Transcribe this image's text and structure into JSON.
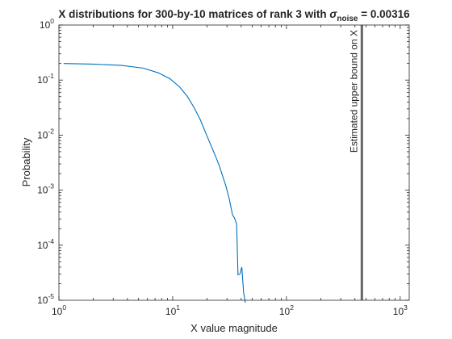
{
  "chart_data": {
    "type": "line",
    "title": {
      "main": "X  distributions  for  300-by-10   matrices  of  rank  3  with  ",
      "sigma": "σ",
      "subscript": "noise",
      "value": " = 0.00316"
    },
    "xlabel": "X value magnitude",
    "ylabel": "Probability",
    "x_scale": "log",
    "y_scale": "log",
    "xlim": [
      1,
      1200
    ],
    "ylim": [
      1e-05,
      1
    ],
    "grid": false,
    "x_ticks": [
      {
        "value": 1,
        "base": "10",
        "exp": "0"
      },
      {
        "value": 10,
        "base": "10",
        "exp": "1"
      },
      {
        "value": 100,
        "base": "10",
        "exp": "2"
      },
      {
        "value": 1000,
        "base": "10",
        "exp": "3"
      }
    ],
    "y_ticks": [
      {
        "value": 1,
        "base": "10",
        "exp": "0"
      },
      {
        "value": 0.1,
        "base": "10",
        "exp": "-1"
      },
      {
        "value": 0.01,
        "base": "10",
        "exp": "-2"
      },
      {
        "value": 0.001,
        "base": "10",
        "exp": "-3"
      },
      {
        "value": 0.0001,
        "base": "10",
        "exp": "-4"
      },
      {
        "value": 1e-05,
        "base": "10",
        "exp": "-5"
      }
    ],
    "series": [
      {
        "color": "#0072BD",
        "x": [
          1.1,
          2.0,
          3.5,
          5.5,
          7.5,
          9.5,
          11.5,
          13.5,
          15.5,
          17.5,
          19.5,
          21.5,
          23.5,
          25.5,
          27.5,
          29.5,
          31.5,
          33.5,
          35.0,
          36.5,
          37.5,
          39.0,
          40.5,
          42.0,
          43.5
        ],
        "y": [
          0.2,
          0.195,
          0.185,
          0.165,
          0.135,
          0.105,
          0.075,
          0.05,
          0.031,
          0.019,
          0.011,
          0.0068,
          0.0044,
          0.0029,
          0.0018,
          0.00115,
          0.00068,
          0.00036,
          0.00031,
          0.00024,
          2.9e-05,
          3e-05,
          4e-05,
          1.4e-05,
          9e-06
        ]
      }
    ],
    "vline": {
      "x": 460,
      "color": "#666666",
      "label": "Estimated upper bound on X"
    }
  }
}
